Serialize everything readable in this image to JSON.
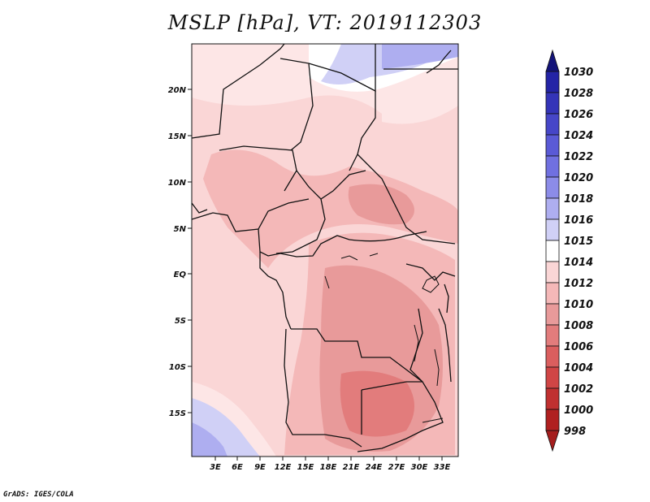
{
  "title": "MSLP [hPa], VT: 2019112303",
  "credit": "GrADS: IGES/COLA",
  "map": {
    "lat_labels": [
      "20N",
      "15N",
      "10N",
      "5N",
      "EQ",
      "5S",
      "10S",
      "15S"
    ],
    "lon_labels": [
      "3E",
      "6E",
      "9E",
      "12E",
      "15E",
      "18E",
      "21E",
      "24E",
      "27E",
      "30E",
      "33E"
    ]
  },
  "colorbar": {
    "levels": [
      "1030",
      "1028",
      "1026",
      "1024",
      "1022",
      "1020",
      "1018",
      "1016",
      "1015",
      "1014",
      "1012",
      "1010",
      "1008",
      "1006",
      "1004",
      "1002",
      "1000",
      "998"
    ],
    "colors": [
      "#1a1a8c",
      "#2424a6",
      "#3434b8",
      "#4646c8",
      "#5a5ad6",
      "#7070e0",
      "#8c8ce8",
      "#aeaef0",
      "#d0d0f6",
      "#ffffff",
      "#fad6d6",
      "#f4b8b8",
      "#e89a9a",
      "#e27c7c",
      "#da5e5e",
      "#d04545",
      "#c03030",
      "#b02020"
    ],
    "top_arrow_color": "#14147a",
    "bottom_arrow_color": "#a51d1d"
  }
}
